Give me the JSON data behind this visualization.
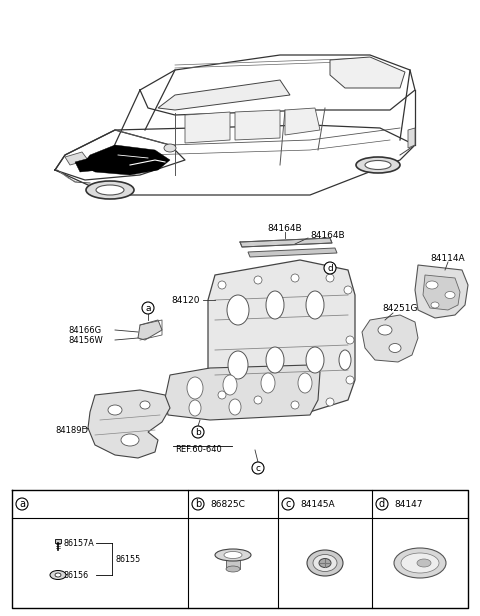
{
  "bg_color": "#ffffff",
  "fig_width": 4.8,
  "fig_height": 6.16,
  "dpi": 100,
  "labels": {
    "84164B_top": "84164B",
    "84164B_bot": "84164B",
    "84114A": "84114A",
    "84120": "84120",
    "84251G": "84251G",
    "84166G": "84166G",
    "84156W": "84156W",
    "84189D": "84189D",
    "ref": "REF.60-640",
    "b_part": "86825C",
    "c_part": "84145A",
    "d_part": "84147",
    "86157A": "86157A",
    "86156": "86156",
    "86155": "86155"
  }
}
